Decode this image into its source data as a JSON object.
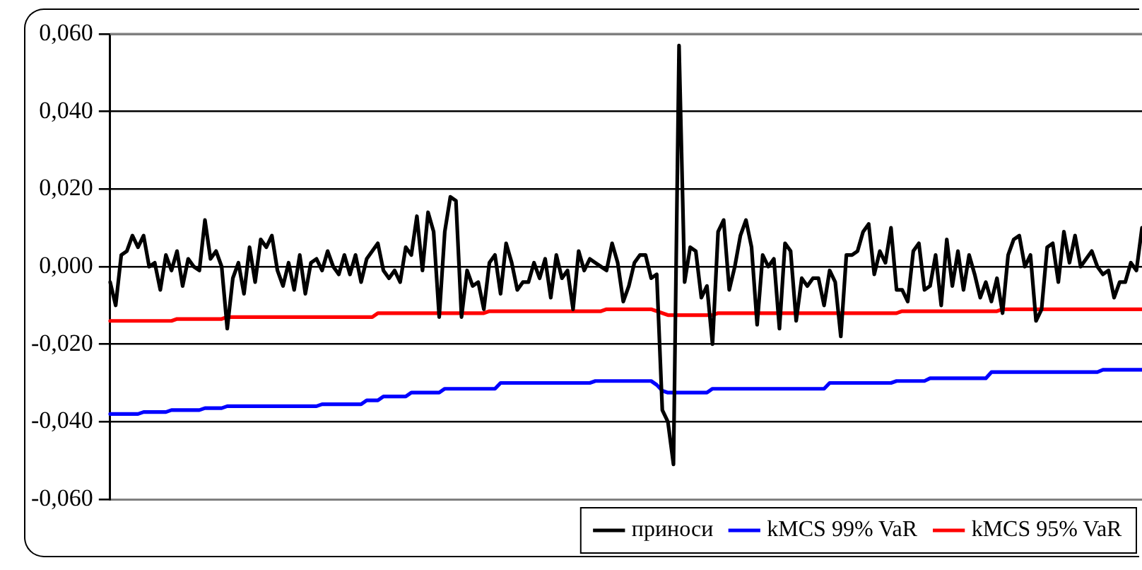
{
  "chart_data": {
    "type": "line",
    "categories": [
      null,
      null,
      null,
      null,
      null,
      null,
      null,
      null,
      null,
      null,
      null,
      null,
      null,
      null,
      null,
      null,
      null,
      null,
      null,
      null,
      null,
      null,
      null,
      null,
      null,
      null,
      null,
      null,
      null,
      null,
      null,
      null,
      null,
      null,
      null,
      null,
      null,
      null,
      null,
      null,
      null,
      null,
      null,
      null,
      null,
      null,
      null,
      null,
      null,
      null,
      null,
      null,
      null,
      null,
      null,
      null,
      null,
      null,
      null,
      null,
      null,
      null,
      null,
      null,
      null,
      null,
      null,
      null,
      null,
      null,
      null,
      null,
      null,
      null,
      null,
      null,
      null,
      null,
      null,
      null,
      null,
      null,
      null,
      null,
      null,
      null,
      null,
      null,
      null,
      null,
      null,
      null,
      null,
      null,
      null,
      null,
      null,
      null,
      null,
      null,
      null,
      null,
      null,
      null,
      null,
      null,
      null,
      null,
      null,
      null,
      null,
      null,
      null,
      null,
      null,
      null,
      null,
      null,
      null,
      null,
      null,
      null,
      null,
      null,
      null,
      null,
      null,
      null,
      null,
      null,
      null,
      null,
      null,
      null,
      null,
      null,
      null,
      null,
      null,
      null,
      null,
      null,
      null,
      null,
      null,
      null,
      null,
      null,
      null,
      null,
      null,
      null,
      null,
      null,
      null,
      null,
      null,
      null,
      null,
      null,
      null,
      null,
      null,
      null,
      null,
      null,
      null,
      null,
      null,
      null,
      null,
      null,
      null,
      null,
      null,
      null,
      null,
      null,
      null,
      null,
      null,
      null,
      null,
      null,
      null,
      null
    ],
    "series": [
      {
        "name": "приноси",
        "color": "#000000",
        "values": [
          -0.004,
          -0.01,
          0.003,
          0.004,
          0.008,
          0.005,
          0.008,
          0.0,
          0.001,
          -0.006,
          0.003,
          -0.001,
          0.004,
          -0.005,
          0.002,
          0.0,
          -0.001,
          0.012,
          0.002,
          0.004,
          0.0,
          -0.016,
          -0.003,
          0.001,
          -0.007,
          0.005,
          -0.004,
          0.007,
          0.005,
          0.008,
          -0.001,
          -0.005,
          0.001,
          -0.006,
          0.003,
          -0.007,
          0.001,
          0.002,
          -0.001,
          0.004,
          0.0,
          -0.002,
          0.003,
          -0.002,
          0.003,
          -0.004,
          0.002,
          0.004,
          0.006,
          -0.001,
          -0.003,
          -0.001,
          -0.004,
          0.005,
          0.003,
          0.013,
          -0.001,
          0.014,
          0.009,
          -0.013,
          0.009,
          0.018,
          0.017,
          -0.013,
          -0.001,
          -0.005,
          -0.004,
          -0.011,
          0.001,
          0.003,
          -0.007,
          0.006,
          0.001,
          -0.006,
          -0.004,
          -0.004,
          0.001,
          -0.003,
          0.002,
          -0.008,
          0.003,
          -0.003,
          -0.001,
          -0.011,
          0.004,
          -0.001,
          0.002,
          0.001,
          0.0,
          -0.001,
          0.006,
          0.001,
          -0.009,
          -0.005,
          0.001,
          0.003,
          0.003,
          -0.003,
          -0.002,
          -0.037,
          -0.04,
          -0.051,
          0.057,
          -0.004,
          0.005,
          0.004,
          -0.008,
          -0.005,
          -0.02,
          0.009,
          0.012,
          -0.006,
          0.0,
          0.008,
          0.012,
          0.005,
          -0.015,
          0.003,
          0.0,
          0.002,
          -0.016,
          0.006,
          0.004,
          -0.014,
          -0.003,
          -0.005,
          -0.003,
          -0.003,
          -0.01,
          -0.001,
          -0.004,
          -0.018,
          0.003,
          0.003,
          0.004,
          0.009,
          0.011,
          -0.002,
          0.004,
          0.001,
          0.01,
          -0.006,
          -0.006,
          -0.009,
          0.004,
          0.006,
          -0.006,
          -0.005,
          0.003,
          -0.01,
          0.007,
          -0.005,
          0.004,
          -0.006,
          0.003,
          -0.002,
          -0.008,
          -0.004,
          -0.009,
          -0.003,
          -0.012,
          0.003,
          0.007,
          0.008,
          0.0,
          0.003,
          -0.014,
          -0.011,
          0.005,
          0.006,
          -0.004,
          0.009,
          0.001,
          0.008,
          0.0,
          0.002,
          0.004,
          0.0,
          -0.002,
          -0.001,
          -0.008,
          -0.004,
          -0.004,
          0.001,
          -0.001,
          0.01
        ]
      },
      {
        "name": "kMCS 99% VaR",
        "color": "#0000ff",
        "values": [
          -0.038,
          -0.038,
          -0.038,
          -0.038,
          -0.038,
          -0.038,
          -0.0375,
          -0.0375,
          -0.0375,
          -0.0375,
          -0.0375,
          -0.037,
          -0.037,
          -0.037,
          -0.037,
          -0.037,
          -0.037,
          -0.0365,
          -0.0365,
          -0.0365,
          -0.0365,
          -0.036,
          -0.036,
          -0.036,
          -0.036,
          -0.036,
          -0.036,
          -0.036,
          -0.036,
          -0.036,
          -0.036,
          -0.036,
          -0.036,
          -0.036,
          -0.036,
          -0.036,
          -0.036,
          -0.036,
          -0.0355,
          -0.0355,
          -0.0355,
          -0.0355,
          -0.0355,
          -0.0355,
          -0.0355,
          -0.0355,
          -0.0345,
          -0.0345,
          -0.0345,
          -0.0335,
          -0.0335,
          -0.0335,
          -0.0335,
          -0.0335,
          -0.0325,
          -0.0325,
          -0.0325,
          -0.0325,
          -0.0325,
          -0.0325,
          -0.0315,
          -0.0315,
          -0.0315,
          -0.0315,
          -0.0315,
          -0.0315,
          -0.0315,
          -0.0315,
          -0.0315,
          -0.0315,
          -0.03,
          -0.03,
          -0.03,
          -0.03,
          -0.03,
          -0.03,
          -0.03,
          -0.03,
          -0.03,
          -0.03,
          -0.03,
          -0.03,
          -0.03,
          -0.03,
          -0.03,
          -0.03,
          -0.03,
          -0.0295,
          -0.0295,
          -0.0295,
          -0.0295,
          -0.0295,
          -0.0295,
          -0.0295,
          -0.0295,
          -0.0295,
          -0.0295,
          -0.0295,
          -0.0305,
          -0.032,
          -0.0325,
          -0.0325,
          -0.0325,
          -0.0325,
          -0.0325,
          -0.0325,
          -0.0325,
          -0.0325,
          -0.0315,
          -0.0315,
          -0.0315,
          -0.0315,
          -0.0315,
          -0.0315,
          -0.0315,
          -0.0315,
          -0.0315,
          -0.0315,
          -0.0315,
          -0.0315,
          -0.0315,
          -0.0315,
          -0.0315,
          -0.0315,
          -0.0315,
          -0.0315,
          -0.0315,
          -0.0315,
          -0.0315,
          -0.03,
          -0.03,
          -0.03,
          -0.03,
          -0.03,
          -0.03,
          -0.03,
          -0.03,
          -0.03,
          -0.03,
          -0.03,
          -0.03,
          -0.0295,
          -0.0295,
          -0.0295,
          -0.0295,
          -0.0295,
          -0.0295,
          -0.0288,
          -0.0288,
          -0.0288,
          -0.0288,
          -0.0288,
          -0.0288,
          -0.0288,
          -0.0288,
          -0.0288,
          -0.0288,
          -0.0288,
          -0.0272,
          -0.0272,
          -0.0272,
          -0.0272,
          -0.0272,
          -0.0272,
          -0.0272,
          -0.0272,
          -0.0272,
          -0.0272,
          -0.0272,
          -0.0272,
          -0.0272,
          -0.0272,
          -0.0272,
          -0.0272,
          -0.0272,
          -0.0272,
          -0.0272,
          -0.0272,
          -0.0266,
          -0.0266,
          -0.0266,
          -0.0266,
          -0.0266,
          -0.0266,
          -0.0266,
          -0.0266
        ]
      },
      {
        "name": "kMCS 95% VaR",
        "color": "#ff0000",
        "values": [
          -0.014,
          -0.014,
          -0.014,
          -0.014,
          -0.014,
          -0.014,
          -0.014,
          -0.014,
          -0.014,
          -0.014,
          -0.014,
          -0.014,
          -0.0135,
          -0.0135,
          -0.0135,
          -0.0135,
          -0.0135,
          -0.0135,
          -0.0135,
          -0.0135,
          -0.0135,
          -0.013,
          -0.013,
          -0.013,
          -0.013,
          -0.013,
          -0.013,
          -0.013,
          -0.013,
          -0.013,
          -0.013,
          -0.013,
          -0.013,
          -0.013,
          -0.013,
          -0.013,
          -0.013,
          -0.013,
          -0.013,
          -0.013,
          -0.013,
          -0.013,
          -0.013,
          -0.013,
          -0.013,
          -0.013,
          -0.013,
          -0.013,
          -0.012,
          -0.012,
          -0.012,
          -0.012,
          -0.012,
          -0.012,
          -0.012,
          -0.012,
          -0.012,
          -0.012,
          -0.012,
          -0.012,
          -0.012,
          -0.012,
          -0.012,
          -0.012,
          -0.012,
          -0.012,
          -0.012,
          -0.012,
          -0.0115,
          -0.0115,
          -0.0115,
          -0.0115,
          -0.0115,
          -0.0115,
          -0.0115,
          -0.0115,
          -0.0115,
          -0.0115,
          -0.0115,
          -0.0115,
          -0.0115,
          -0.0115,
          -0.0115,
          -0.0115,
          -0.0115,
          -0.0115,
          -0.0115,
          -0.0115,
          -0.0115,
          -0.011,
          -0.011,
          -0.011,
          -0.011,
          -0.011,
          -0.011,
          -0.011,
          -0.011,
          -0.011,
          -0.0115,
          -0.012,
          -0.0125,
          -0.0125,
          -0.0125,
          -0.0125,
          -0.0125,
          -0.0125,
          -0.0125,
          -0.0125,
          -0.0125,
          -0.012,
          -0.012,
          -0.012,
          -0.012,
          -0.012,
          -0.012,
          -0.012,
          -0.012,
          -0.012,
          -0.012,
          -0.012,
          -0.012,
          -0.012,
          -0.012,
          -0.012,
          -0.012,
          -0.012,
          -0.012,
          -0.012,
          -0.012,
          -0.012,
          -0.012,
          -0.012,
          -0.012,
          -0.012,
          -0.012,
          -0.012,
          -0.012,
          -0.012,
          -0.012,
          -0.012,
          -0.012,
          -0.012,
          -0.0115,
          -0.0115,
          -0.0115,
          -0.0115,
          -0.0115,
          -0.0115,
          -0.0115,
          -0.0115,
          -0.0115,
          -0.0115,
          -0.0115,
          -0.0115,
          -0.0115,
          -0.0115,
          -0.0115,
          -0.0115,
          -0.0115,
          -0.0115,
          -0.011,
          -0.011,
          -0.011,
          -0.011,
          -0.011,
          -0.011,
          -0.011,
          -0.011,
          -0.011,
          -0.011,
          -0.011,
          -0.011,
          -0.011,
          -0.011,
          -0.011,
          -0.011,
          -0.011,
          -0.011,
          -0.011,
          -0.011,
          -0.011,
          -0.011,
          -0.011,
          -0.011,
          -0.011,
          -0.011
        ]
      }
    ],
    "ylim": [
      -0.06,
      0.06
    ],
    "yticks": [
      {
        "value": -0.06,
        "label": "-0,060"
      },
      {
        "value": -0.04,
        "label": "-0,040"
      },
      {
        "value": -0.02,
        "label": "-0,020"
      },
      {
        "value": 0,
        "label": "0,000"
      },
      {
        "value": 0.02,
        "label": "0,020"
      },
      {
        "value": 0.04,
        "label": "0,040"
      },
      {
        "value": 0.06,
        "label": "0,060"
      }
    ],
    "grid": "y",
    "legend": "bottom",
    "tick_labels": "y",
    "marker": "none",
    "line_style": "solid"
  }
}
